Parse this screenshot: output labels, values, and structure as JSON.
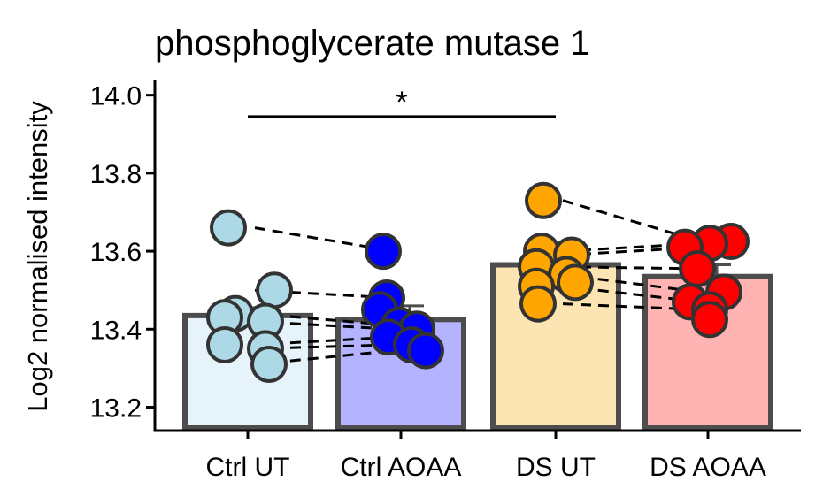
{
  "chart_data": {
    "type": "bar",
    "title": "phosphoglycerate mutase 1",
    "ylabel": "Log2 normalised intensity",
    "xlabel": "",
    "ylim": [
      13.14,
      14.04
    ],
    "yticks": [
      13.2,
      13.4,
      13.6,
      13.8,
      14.0
    ],
    "ytick_labels": [
      "13.2",
      "13.4",
      "13.6",
      "13.8",
      "14.0"
    ],
    "grid": false,
    "legend": "none",
    "categories": [
      "Ctrl UT",
      "Ctrl AOAA",
      "DS UT",
      "DS AOAA"
    ],
    "bar_values": [
      13.435,
      13.425,
      13.565,
      13.535
    ],
    "error": [
      0.02,
      0.035,
      0.03,
      0.03
    ],
    "bar_colors": [
      "#e6f3fa",
      "#b3b3ff",
      "#fde4b3",
      "#ffb3b3"
    ],
    "point_colors": [
      "#add8e6",
      "#0000ff",
      "#ffa500",
      "#ff0000"
    ],
    "points": [
      [
        13.66,
        13.5,
        13.44,
        13.43,
        13.42,
        13.36,
        13.35,
        13.31
      ],
      [
        13.6,
        13.48,
        13.45,
        13.41,
        13.4,
        13.38,
        13.36,
        13.345
      ],
      [
        13.73,
        13.6,
        13.59,
        13.56,
        13.54,
        13.52,
        13.51,
        13.465
      ],
      [
        13.625,
        13.62,
        13.61,
        13.555,
        13.495,
        13.47,
        13.45,
        13.425
      ]
    ],
    "pairs": {
      "control": [
        [
          13.66,
          13.6
        ],
        [
          13.5,
          13.48
        ],
        [
          13.44,
          13.41
        ],
        [
          13.42,
          13.4
        ],
        [
          13.36,
          13.38
        ],
        [
          13.35,
          13.36
        ],
        [
          13.31,
          13.345
        ]
      ],
      "ds": [
        [
          13.73,
          13.625
        ],
        [
          13.6,
          13.62
        ],
        [
          13.59,
          13.61
        ],
        [
          13.56,
          13.555
        ],
        [
          13.54,
          13.495
        ],
        [
          13.51,
          13.47
        ],
        [
          13.465,
          13.45
        ]
      ]
    },
    "annotations": [
      {
        "text": "*",
        "from": "Ctrl UT",
        "to": "DS UT",
        "y": 13.945
      }
    ]
  }
}
